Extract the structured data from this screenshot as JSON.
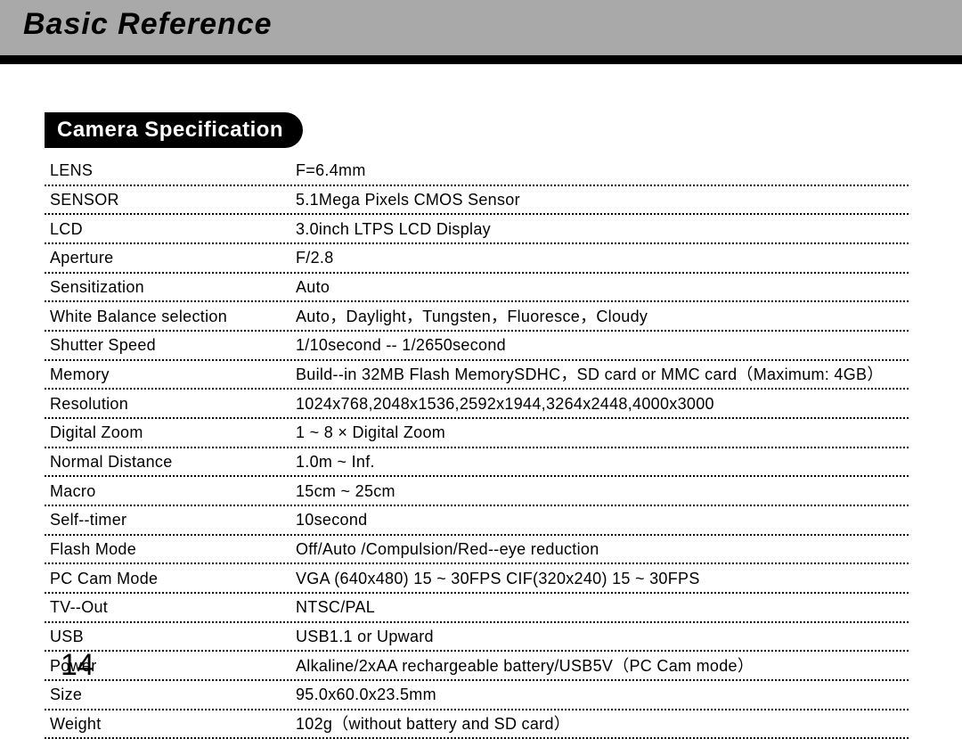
{
  "header": {
    "title": "Basic Reference"
  },
  "section": {
    "title": "Camera  Specification"
  },
  "specs": [
    {
      "label": "LENS",
      "value": "F=6.4mm"
    },
    {
      "label": "SENSOR",
      "value": "5.1Mega Pixels CMOS Sensor"
    },
    {
      "label": "LCD",
      "value": "3.0inch LTPS LCD Display"
    },
    {
      "label": "Aperture",
      "value": "F/2.8"
    },
    {
      "label": "Sensitization",
      "value": "Auto"
    },
    {
      "label": "White Balance selection",
      "value": "Auto，Daylight，Tungsten，Fluoresce，Cloudy"
    },
    {
      "label": "Shutter Speed",
      "value": "1/10second -- 1/2650second"
    },
    {
      "label": "Memory",
      "value": "Build--in 32MB   Flash MemorySDHC，SD card or MMC card（Maximum: 4GB）"
    },
    {
      "label": "Resolution",
      "value": "1024x768,2048x1536,2592x1944,3264x2448,4000x3000"
    },
    {
      "label": "Digital Zoom",
      "value": "1 ~ 8 × Digital Zoom"
    },
    {
      "label": "Normal Distance",
      "value": "1.0m ~ Inf."
    },
    {
      "label": "Macro",
      "value": "15cm ~ 25cm"
    },
    {
      "label": "Self--timer",
      "value": "10second"
    },
    {
      "label": "Flash Mode",
      "value": "Off/Auto /Compulsion/Red--eye reduction"
    },
    {
      "label": "PC Cam Mode",
      "value": "VGA (640x480)   15 ~ 30FPS    CIF(320x240)   15 ~ 30FPS"
    },
    {
      "label": " TV--Out",
      "value": "NTSC/PAL"
    },
    {
      "label": " USB",
      "value": "USB1.1 or Upward"
    },
    {
      "label": "Power",
      "value": "Alkaline/2xAA rechargeable battery/USB5V（PC Cam mode）"
    },
    {
      "label": "Size",
      "value": "95.0x60.0x23.5mm"
    },
    {
      "label": "Weight",
      "value": "102g（without battery and SD card）"
    }
  ],
  "page_number": "14",
  "colors": {
    "header_band": "#a9a9a9",
    "black": "#000000",
    "white": "#ffffff",
    "background": "#ffffff"
  },
  "typography": {
    "header_title_size": 34,
    "section_title_size": 24,
    "spec_text_size": 18,
    "page_number_size": 34
  }
}
